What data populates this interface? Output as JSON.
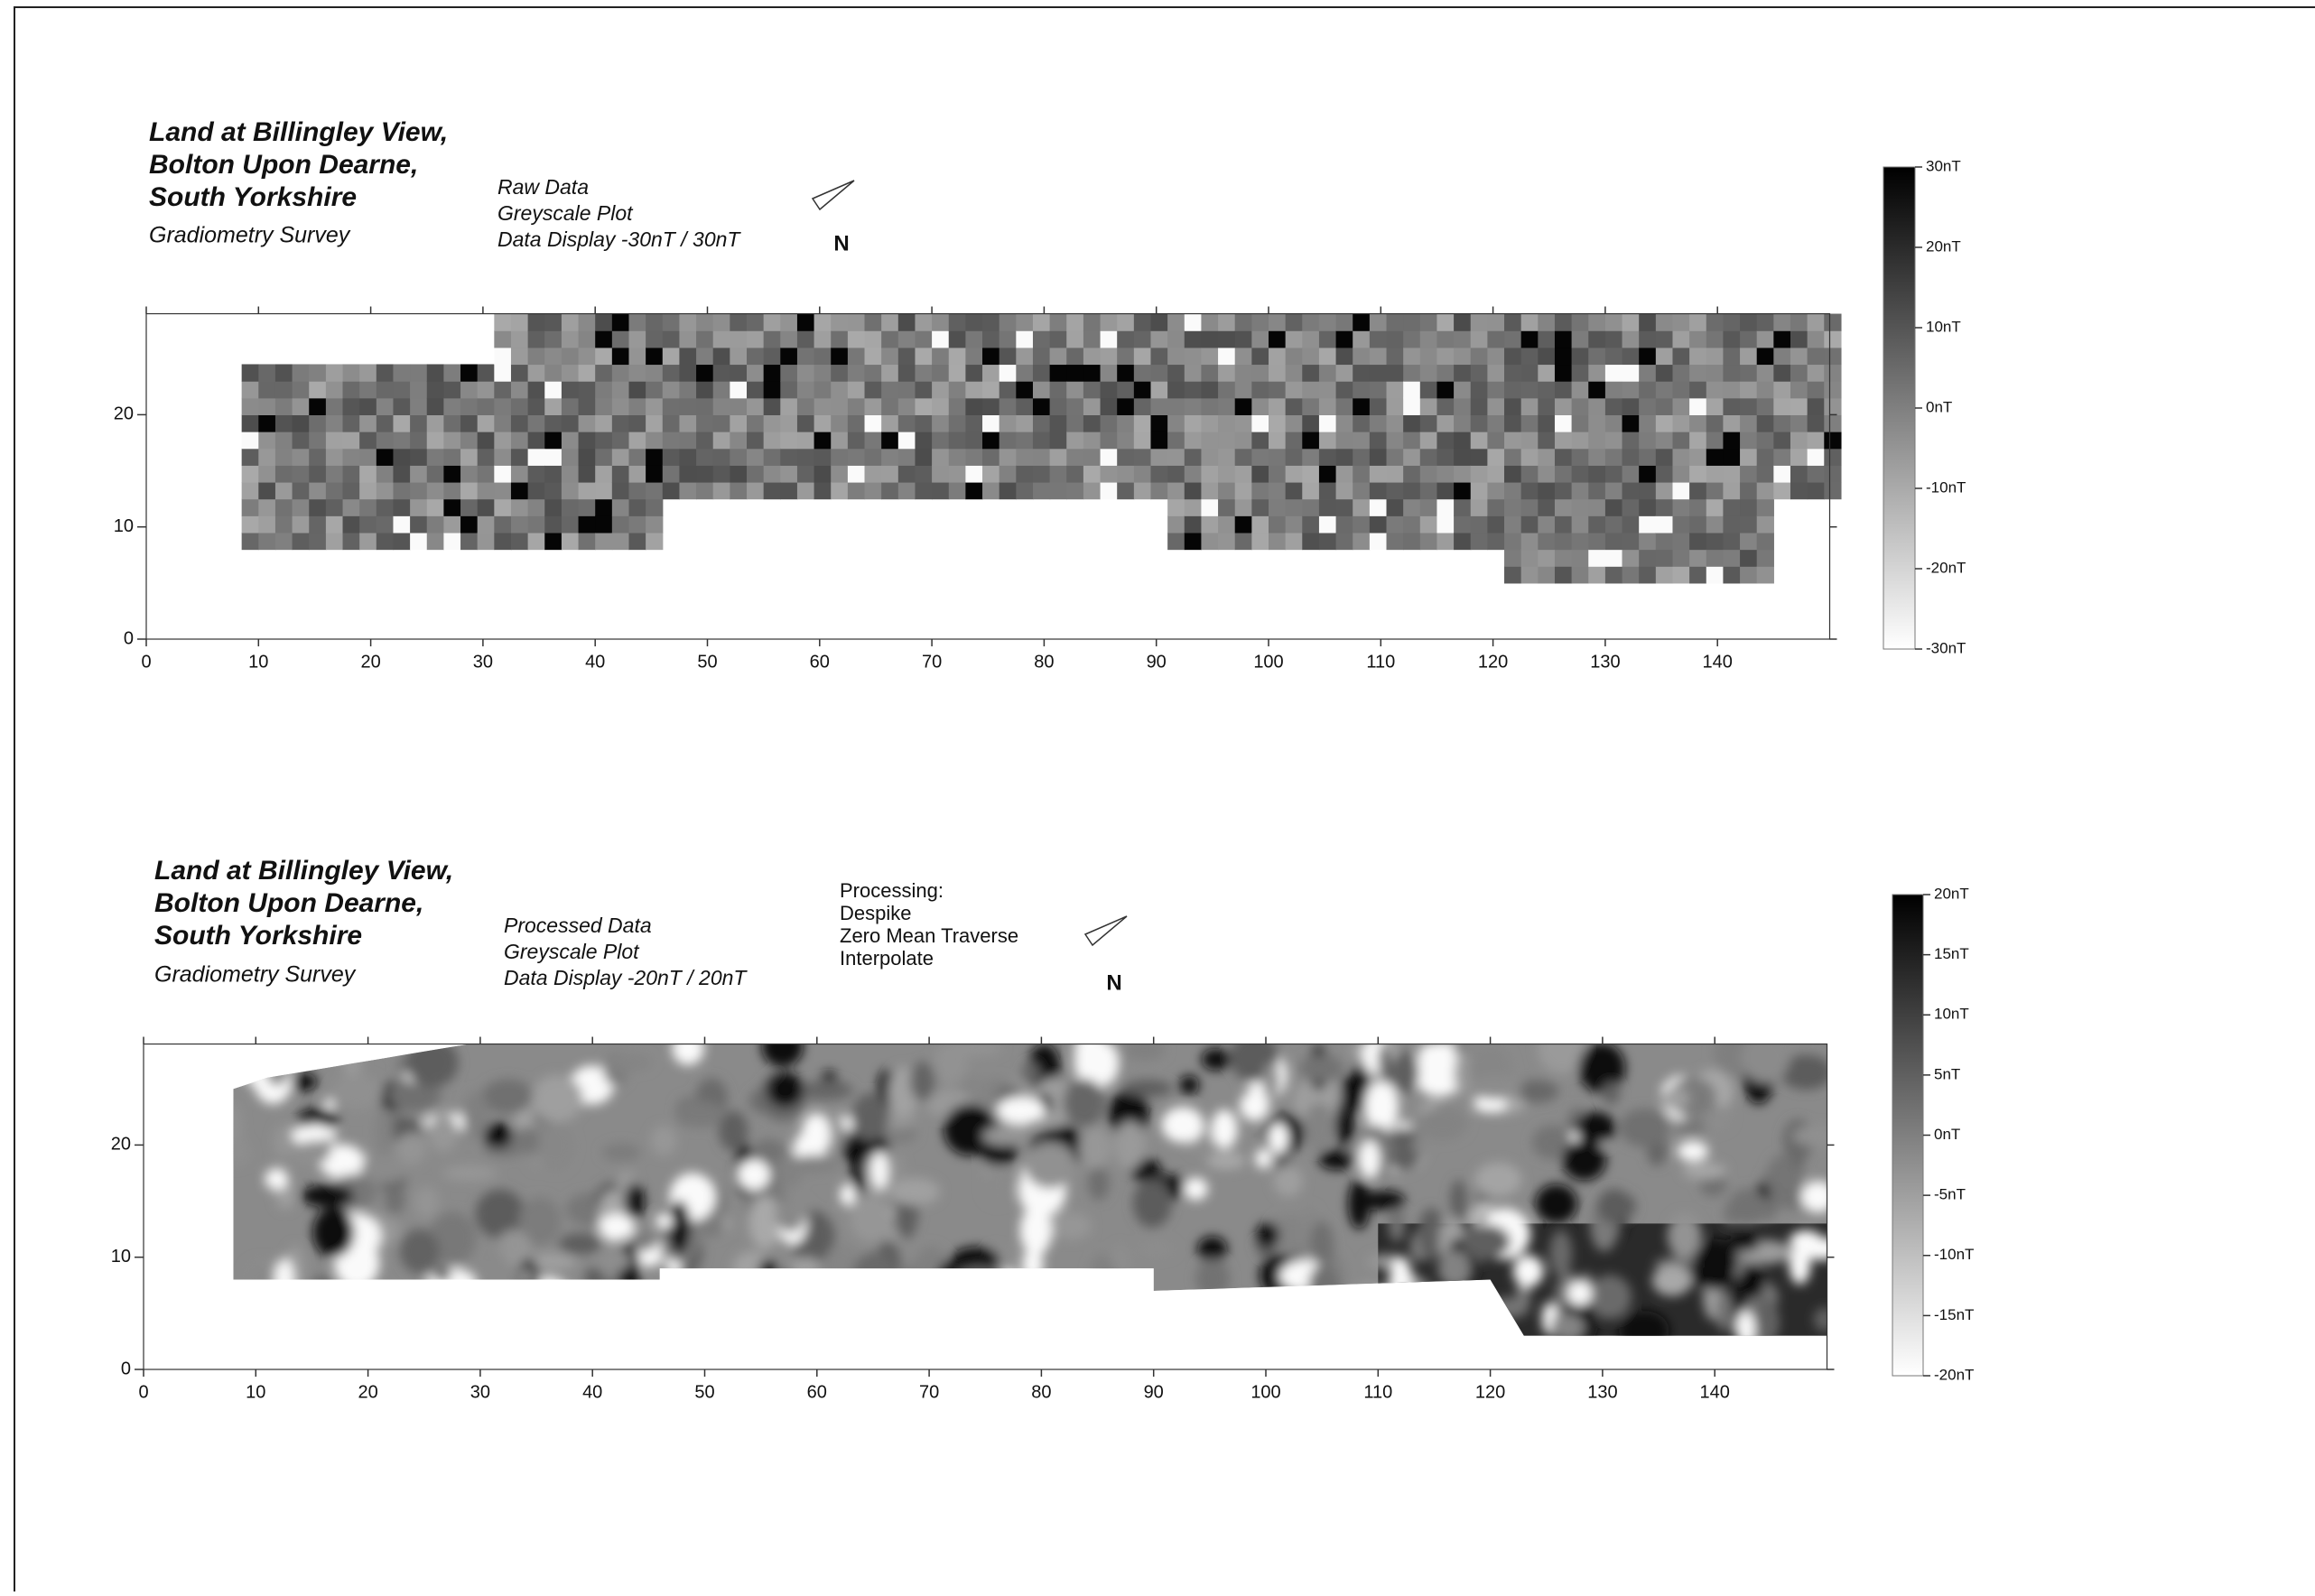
{
  "chart_data": [
    {
      "type": "heatmap",
      "title_lines": [
        "Land at Billingley View,",
        "Bolton Upon Dearne,",
        "South Yorkshire"
      ],
      "subtitle": "Gradiometry Survey",
      "notes": [
        "Raw Data",
        "Greyscale Plot",
        "Data Display -30nT / 30nT"
      ],
      "north": "N",
      "xlim": [
        0,
        150
      ],
      "ylim": [
        0,
        29
      ],
      "xticks": [
        0,
        10,
        20,
        30,
        40,
        50,
        60,
        70,
        80,
        90,
        100,
        110,
        120,
        130,
        140
      ],
      "yticks": [
        0,
        10,
        20
      ],
      "colorbar": {
        "lim": [
          -30,
          30
        ],
        "ticks": [
          {
            "value": 30,
            "label": "30nT"
          },
          {
            "value": 20,
            "label": "20nT"
          },
          {
            "value": 10,
            "label": "10nT"
          },
          {
            "value": 0,
            "label": "0nT"
          },
          {
            "value": -10,
            "label": "-10nT"
          },
          {
            "value": -20,
            "label": "-20nT"
          },
          {
            "value": -30,
            "label": "-30nT"
          }
        ]
      }
    },
    {
      "type": "heatmap",
      "title_lines": [
        "Land at Billingley View,",
        "Bolton Upon Dearne,",
        "South Yorkshire"
      ],
      "subtitle": "Gradiometry Survey",
      "notes": [
        "Processed Data",
        "Greyscale Plot",
        "Data Display -20nT / 20nT"
      ],
      "processing": [
        "Processing:",
        "Despike",
        "Zero Mean Traverse",
        "Interpolate"
      ],
      "north": "N",
      "xlim": [
        0,
        150
      ],
      "ylim": [
        0,
        29
      ],
      "xticks": [
        0,
        10,
        20,
        30,
        40,
        50,
        60,
        70,
        80,
        90,
        100,
        110,
        120,
        130,
        140
      ],
      "yticks": [
        0,
        10,
        20
      ],
      "colorbar": {
        "lim": [
          -20,
          20
        ],
        "ticks": [
          {
            "value": 20,
            "label": "20nT"
          },
          {
            "value": 15,
            "label": "15nT"
          },
          {
            "value": 10,
            "label": "10nT"
          },
          {
            "value": 5,
            "label": "5nT"
          },
          {
            "value": 0,
            "label": "0nT"
          },
          {
            "value": -5,
            "label": "-5nT"
          },
          {
            "value": -10,
            "label": "-10nT"
          },
          {
            "value": -15,
            "label": "-15nT"
          },
          {
            "value": -20,
            "label": "-20nT"
          }
        ]
      }
    }
  ]
}
